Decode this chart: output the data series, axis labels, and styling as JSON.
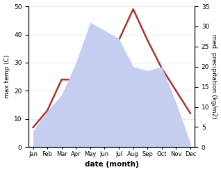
{
  "months": [
    "Jan",
    "Feb",
    "Mar",
    "Apr",
    "May",
    "Jun",
    "Jul",
    "Aug",
    "Sep",
    "Oct",
    "Nov",
    "Dec"
  ],
  "temperature": [
    7,
    13,
    24,
    24,
    32,
    32,
    38,
    49,
    38,
    28,
    20,
    12
  ],
  "precipitation": [
    4,
    9,
    13,
    21,
    31,
    29,
    27,
    20,
    19,
    20,
    11,
    1
  ],
  "temp_color": "#b03030",
  "precip_color_fill": "#c5cdf0",
  "left_ylim": [
    0,
    50
  ],
  "right_ylim": [
    0,
    35
  ],
  "left_yticks": [
    0,
    10,
    20,
    30,
    40,
    50
  ],
  "right_yticks": [
    0,
    5,
    10,
    15,
    20,
    25,
    30,
    35
  ],
  "left_ylabel": "max temp (C)",
  "right_ylabel": "med. precipitation (kg/m2)",
  "xlabel": "date (month)"
}
